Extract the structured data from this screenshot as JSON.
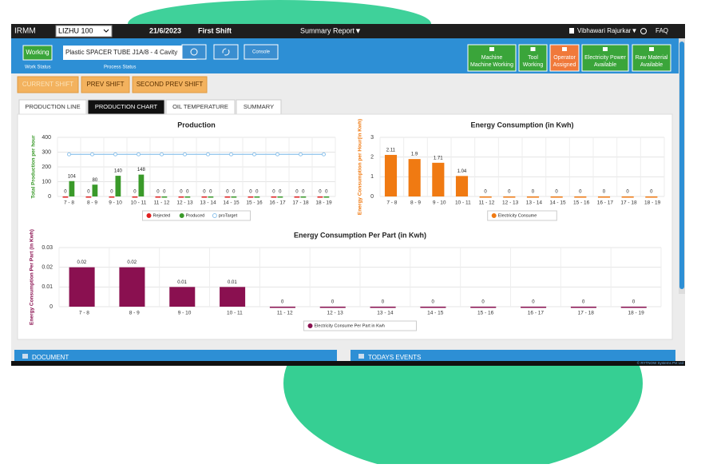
{
  "header": {
    "app": "IRMM",
    "machine": "LIZHU 100",
    "date": "21/6/2023",
    "shift": "First Shift",
    "report": "Summary Report▼",
    "user": "Vibhawari Rajurkar▼",
    "faq": "FAQ"
  },
  "toolbar": {
    "work_status": "Working",
    "work_status_label": "Work Status",
    "process": "Plastic SPACER TUBE J1A/8 - 4 Cavity",
    "process_label": "Process Status",
    "console": "Console",
    "tiles": [
      {
        "title": "Machine",
        "subtitle": "Machine Working",
        "color": "#3aa53a"
      },
      {
        "title": "Tool",
        "subtitle": "Working",
        "color": "#3aa53a"
      },
      {
        "title": "Operator",
        "subtitle": "Assigned",
        "color": "#f0793a"
      },
      {
        "title": "Electricity Power",
        "subtitle": "Available",
        "color": "#3aa53a"
      },
      {
        "title": "Raw Material",
        "subtitle": "Available",
        "color": "#3aa53a"
      }
    ]
  },
  "shifts": [
    "CURRENT SHIFT",
    "PREV SHIFT",
    "SECOND PREV SHIFT"
  ],
  "tabs": [
    "PRODUCTION LINE",
    "PRODUCTION CHART",
    "OIL TEMPERATURE",
    "SUMMARY"
  ],
  "panels": [
    "DOCUMENT",
    "TODAYS EVENTS"
  ],
  "footer": "© RYTNOW Systems Pvt Ltd",
  "chart_data": [
    {
      "type": "bar",
      "title": "Production",
      "y_label": "Total Production per hour",
      "categories": [
        "7 - 8",
        "8 - 9",
        "9 - 10",
        "10 - 11",
        "11 - 12",
        "12 - 13",
        "13 - 14",
        "14 - 15",
        "15 - 16",
        "16 - 17",
        "17 - 18",
        "18 - 19"
      ],
      "series": [
        {
          "name": "Rejected",
          "color": "#e02020",
          "values": [
            0,
            0,
            0,
            0,
            0,
            0,
            0,
            0,
            0,
            0,
            0,
            0
          ]
        },
        {
          "name": "Produced",
          "color": "#3a9a2a",
          "values": [
            104,
            80,
            140,
            148,
            0,
            0,
            0,
            0,
            0,
            0,
            0,
            0
          ]
        },
        {
          "name": "proTarget",
          "color": "#8ec3ec",
          "type": "line",
          "values": [
            285,
            285,
            285,
            285,
            285,
            285,
            285,
            285,
            285,
            285,
            285,
            285
          ]
        }
      ],
      "ylim": [
        0,
        400
      ],
      "yticks": [
        0,
        100,
        200,
        300,
        400
      ],
      "grid": true
    },
    {
      "type": "bar",
      "title": "Energy Consumption (in Kwh)",
      "y_label": "Energy Consumption per Hour(in Kwh)",
      "categories": [
        "7 - 8",
        "8 - 9",
        "9 - 10",
        "10 - 11",
        "11 - 12",
        "12 - 13",
        "13 - 14",
        "14 - 15",
        "15 - 16",
        "16 - 17",
        "17 - 18",
        "18 - 19"
      ],
      "series": [
        {
          "name": "Electricity Consume",
          "color": "#f07a12",
          "values": [
            2.11,
            1.9,
            1.71,
            1.04,
            0,
            0,
            0,
            0,
            0,
            0,
            0,
            0
          ]
        }
      ],
      "ylim": [
        0,
        3
      ],
      "yticks": [
        0,
        1,
        2,
        3
      ],
      "grid": true
    },
    {
      "type": "bar",
      "title": "Energy Consumption Per Part (in Kwh)",
      "y_label": "Energy Consumption Per Part (in Kwh)",
      "categories": [
        "7 - 8",
        "8 - 9",
        "9 - 10",
        "10 - 11",
        "11 - 12",
        "12 - 13",
        "13 - 14",
        "14 - 15",
        "15 - 16",
        "16 - 17",
        "17 - 18",
        "18 - 19"
      ],
      "series": [
        {
          "name": "Electricity Consume Per Part in Kwh",
          "color": "#8a1050",
          "values": [
            0.02,
            0.02,
            0.01,
            0.01,
            0,
            0,
            0,
            0,
            0,
            0,
            0,
            0
          ]
        }
      ],
      "ylim": [
        0,
        0.03
      ],
      "yticks": [
        0,
        0.01,
        0.02,
        0.03
      ],
      "grid": true
    }
  ]
}
